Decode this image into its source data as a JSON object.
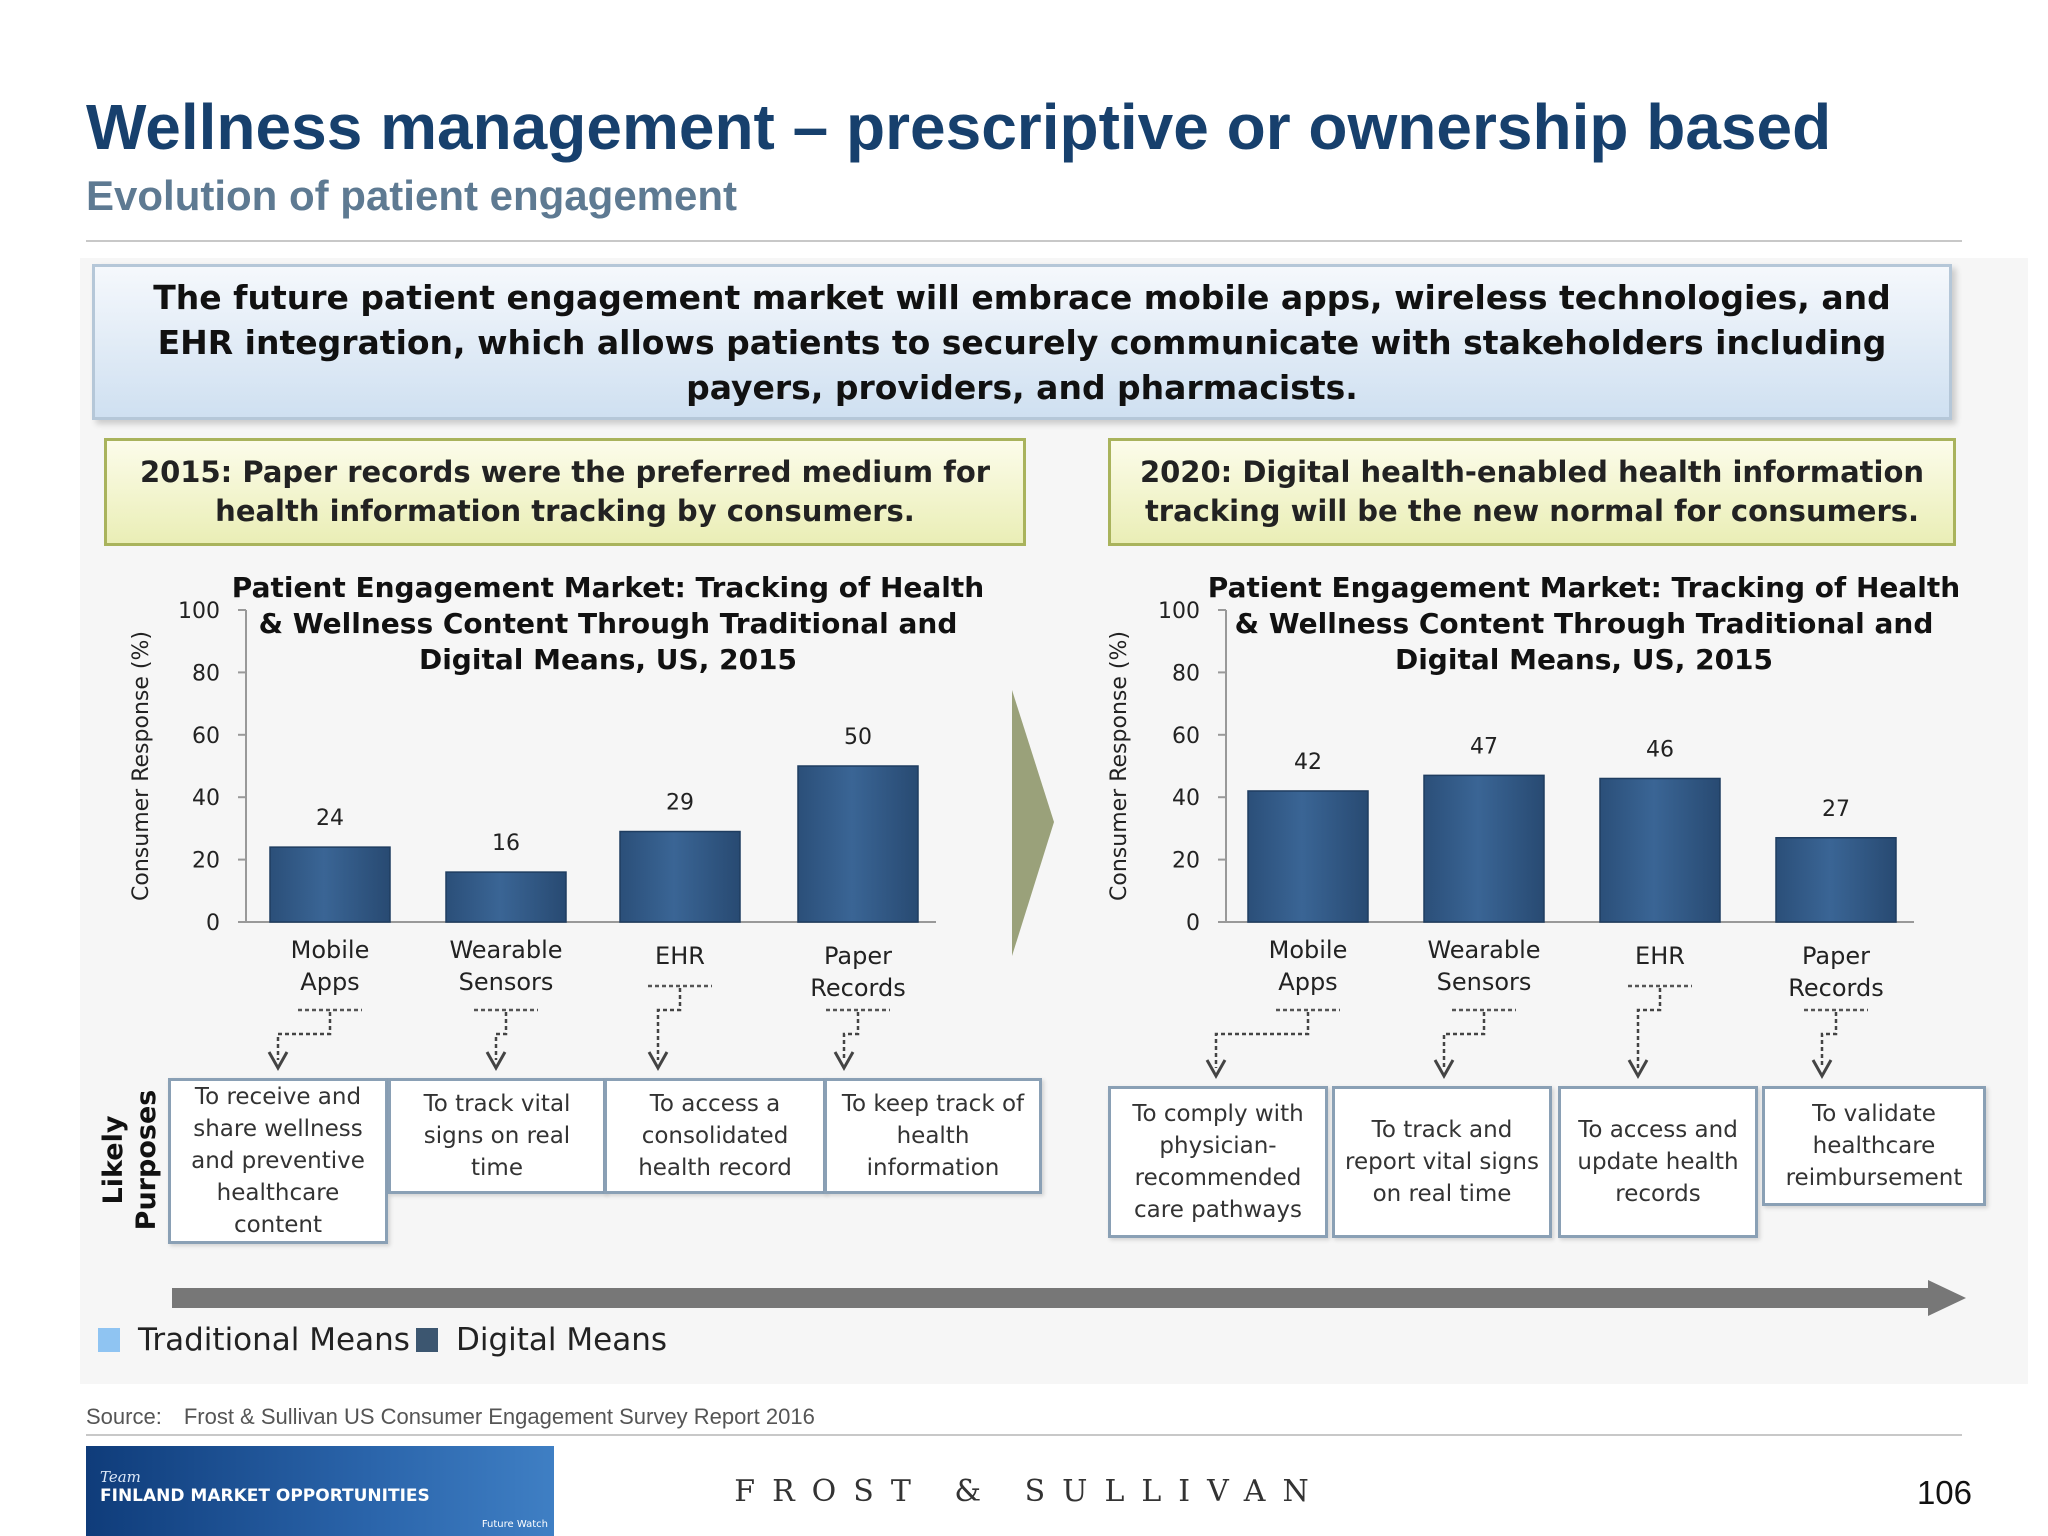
{
  "slide": {
    "title": "Wellness management – prescriptive or ownership based",
    "subtitle": "Evolution of patient engagement"
  },
  "banner": {
    "text": "The future patient engagement market will embrace mobile apps, wireless technologies, and EHR integration, which allows patients to securely communicate with stakeholders including payers, providers, and pharmacists."
  },
  "year_boxes": [
    {
      "text": "2015: Paper records were the preferred medium for health information tracking by consumers."
    },
    {
      "text": "2020: Digital health-enabled health information tracking will be the new normal for consumers."
    }
  ],
  "chart_data": [
    {
      "type": "bar",
      "title": "Patient Engagement Market: Tracking of Health & Wellness Content Through Traditional and Digital Means, US, 2015",
      "ylabel": "Consumer Response (%)",
      "ylim": [
        0,
        100
      ],
      "yticks": [
        "100",
        "80",
        "60",
        "40",
        "20",
        "0"
      ],
      "categories": [
        [
          "Mobile",
          "Apps"
        ],
        [
          "Wearable",
          "Sensors"
        ],
        [
          "EHR"
        ],
        [
          "Paper",
          "Records"
        ]
      ],
      "values": [
        24,
        16,
        29,
        50
      ],
      "bar_color": "#3a6595"
    },
    {
      "type": "bar",
      "title": "Patient Engagement Market: Tracking of Health & Wellness Content Through Traditional and Digital Means, US, 2015",
      "ylabel": "Consumer Response (%)",
      "ylim": [
        0,
        100
      ],
      "yticks": [
        "100",
        "80",
        "60",
        "40",
        "20",
        "0"
      ],
      "categories": [
        [
          "Mobile",
          "Apps"
        ],
        [
          "Wearable",
          "Sensors"
        ],
        [
          "EHR"
        ],
        [
          "Paper",
          "Records"
        ]
      ],
      "values": [
        42,
        47,
        46,
        27
      ],
      "bar_color": "#3a6595"
    }
  ],
  "purposes_label": "Likely Purposes",
  "purposes_2015": [
    "To receive and share wellness and preventive healthcare content",
    "To track vital signs on real time",
    "To access a consolidated health record",
    "To keep track of health information"
  ],
  "purposes_2020": [
    "To comply with physician-recommended care pathways",
    "To track and report vital signs on real time",
    "To access and update health records",
    "To validate healthcare reimbursement"
  ],
  "legend": {
    "traditional": "Traditional Means",
    "digital": "Digital Means",
    "traditional_color": "#8fc4f2",
    "digital_color": "#3c5670"
  },
  "source": {
    "label": "Source:",
    "text": "Frost & Sullivan US Consumer Engagement Survey Report 2016"
  },
  "footer": {
    "team_text": "Team",
    "logo_text": "FINLAND MARKET OPPORTUNITIES",
    "watch_text": "Future Watch",
    "company": "FROST & SULLIVAN",
    "page_number": "106"
  }
}
